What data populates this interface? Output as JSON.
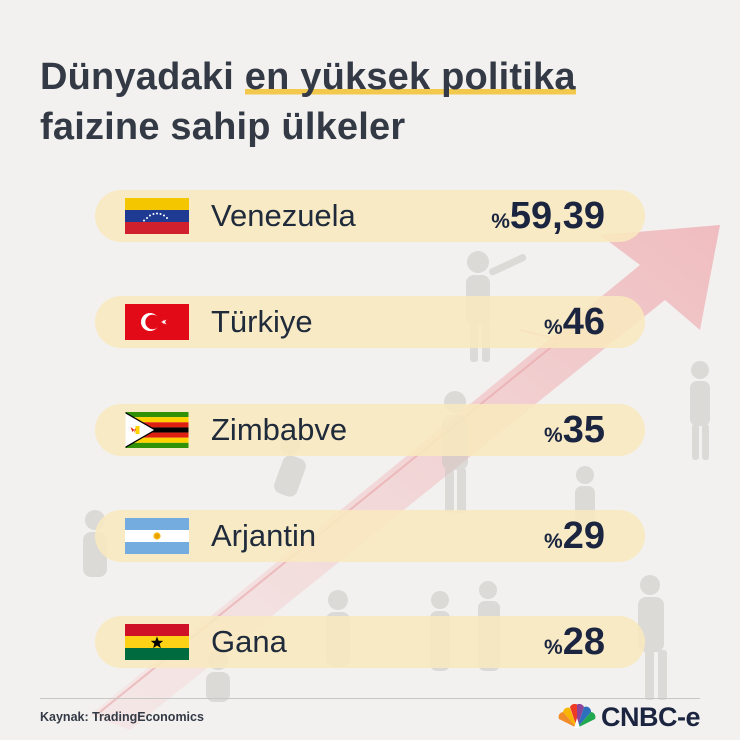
{
  "title": {
    "line1_pre": "Dünyadaki ",
    "line1_highlight": "en yüksek politika",
    "line2": "faizine sahip ülkeler"
  },
  "chart_data": {
    "type": "table",
    "rows": [
      {
        "country": "Venezuela",
        "flag": "venezuela-flag-icon",
        "value": 59.39,
        "value_text": "59,39",
        "prefix": "%"
      },
      {
        "country": "Türkiye",
        "flag": "turkey-flag-icon",
        "value": 46,
        "value_text": "46",
        "prefix": "%"
      },
      {
        "country": "Zimbabve",
        "flag": "zimbabwe-flag-icon",
        "value": 35,
        "value_text": "35",
        "prefix": "%"
      },
      {
        "country": "Arjantin",
        "flag": "argentina-flag-icon",
        "value": 29,
        "value_text": "29",
        "prefix": "%"
      },
      {
        "country": "Gana",
        "flag": "ghana-flag-icon",
        "value": 28,
        "value_text": "28",
        "prefix": "%"
      }
    ]
  },
  "footer": {
    "source": "Kaynak: TradingEconomics",
    "logo_text": "CNBC-e",
    "logo_icon": "peacock-icon"
  },
  "colors": {
    "row_bg": "#f8e8be",
    "highlight": "#f2c94c",
    "value_text": "#1b2540",
    "arrow": "#f3c2c4"
  }
}
